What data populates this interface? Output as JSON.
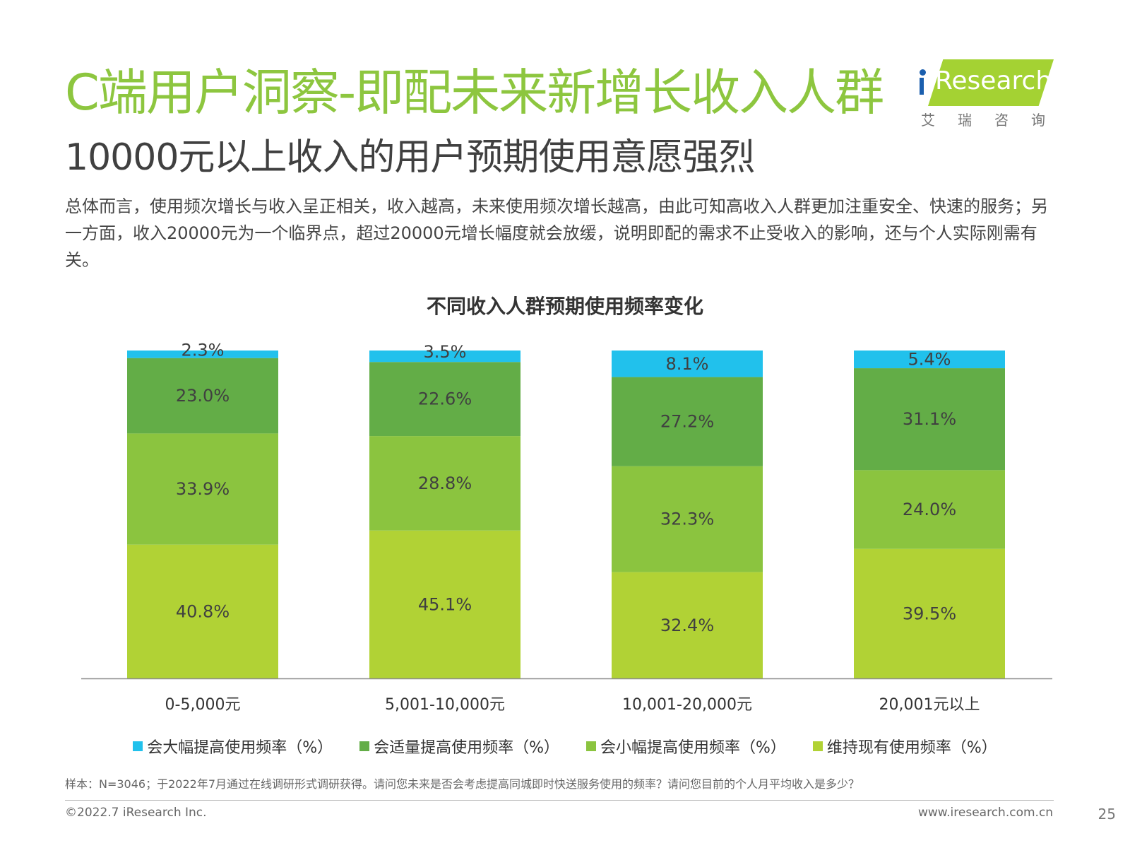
{
  "header": {
    "title": "C端用户洞察-即配未来新增长收入人群",
    "subtitle": "10000元以上收入的用户预期使用意愿强烈",
    "description": "总体而言，使用频次增长与收入呈正相关，收入越高，未来使用频次增长越高，由此可知高收入人群更加注重安全、快速的服务；另一方面，收入20000元为一个临界点，超过20000元增长幅度就会放缓，说明即配的需求不止受收入的影响，还与个人实际刚需有关。"
  },
  "logo": {
    "brand": "Research",
    "brand_cn": "艾瑞咨询"
  },
  "colors": {
    "title_green": "#8dc63f",
    "brand_blue": "#1b5fae"
  },
  "chart_data": {
    "type": "bar",
    "stacked": true,
    "percent": true,
    "title": "不同收入人群预期使用频率变化",
    "categories": [
      "0-5,000元",
      "5,001-10,000元",
      "10,001-20,000元",
      "20,001元以上"
    ],
    "series": [
      {
        "name": "维持现有使用频率（%）",
        "color": "#b1d235",
        "values": [
          40.8,
          45.1,
          32.4,
          39.5
        ],
        "labels": [
          "40.8%",
          "45.1%",
          "32.4%",
          "39.5%"
        ]
      },
      {
        "name": "会小幅提高使用频率（%）",
        "color": "#8bc43f",
        "values": [
          33.9,
          28.8,
          32.3,
          24.0
        ],
        "labels": [
          "33.9%",
          "28.8%",
          "32.3%",
          "24.0%"
        ]
      },
      {
        "name": "会适量提高使用频率（%）",
        "color": "#63ad47",
        "values": [
          23.0,
          22.6,
          27.2,
          31.1
        ],
        "labels": [
          "23.0%",
          "22.6%",
          "27.2%",
          "31.1%"
        ]
      },
      {
        "name": "会大幅提高使用频率（%）",
        "color": "#21c1ec",
        "values": [
          2.3,
          3.5,
          8.1,
          5.4
        ],
        "labels": [
          "2.3%",
          "3.5%",
          "8.1%",
          "5.4%"
        ]
      }
    ],
    "legend_order": [
      3,
      2,
      1,
      0
    ],
    "legend_position": "bottom",
    "ylim": [
      0,
      100
    ],
    "grid": false
  },
  "footer": {
    "note": "样本：N=3046；于2022年7月通过在线调研形式调研获得。请问您未来是否会考虑提高同城即时快送服务使用的频率？请问您目前的个人月平均收入是多少？",
    "copyright": "©2022.7 iResearch Inc.",
    "website": "www.iresearch.com.cn",
    "page": "25"
  }
}
